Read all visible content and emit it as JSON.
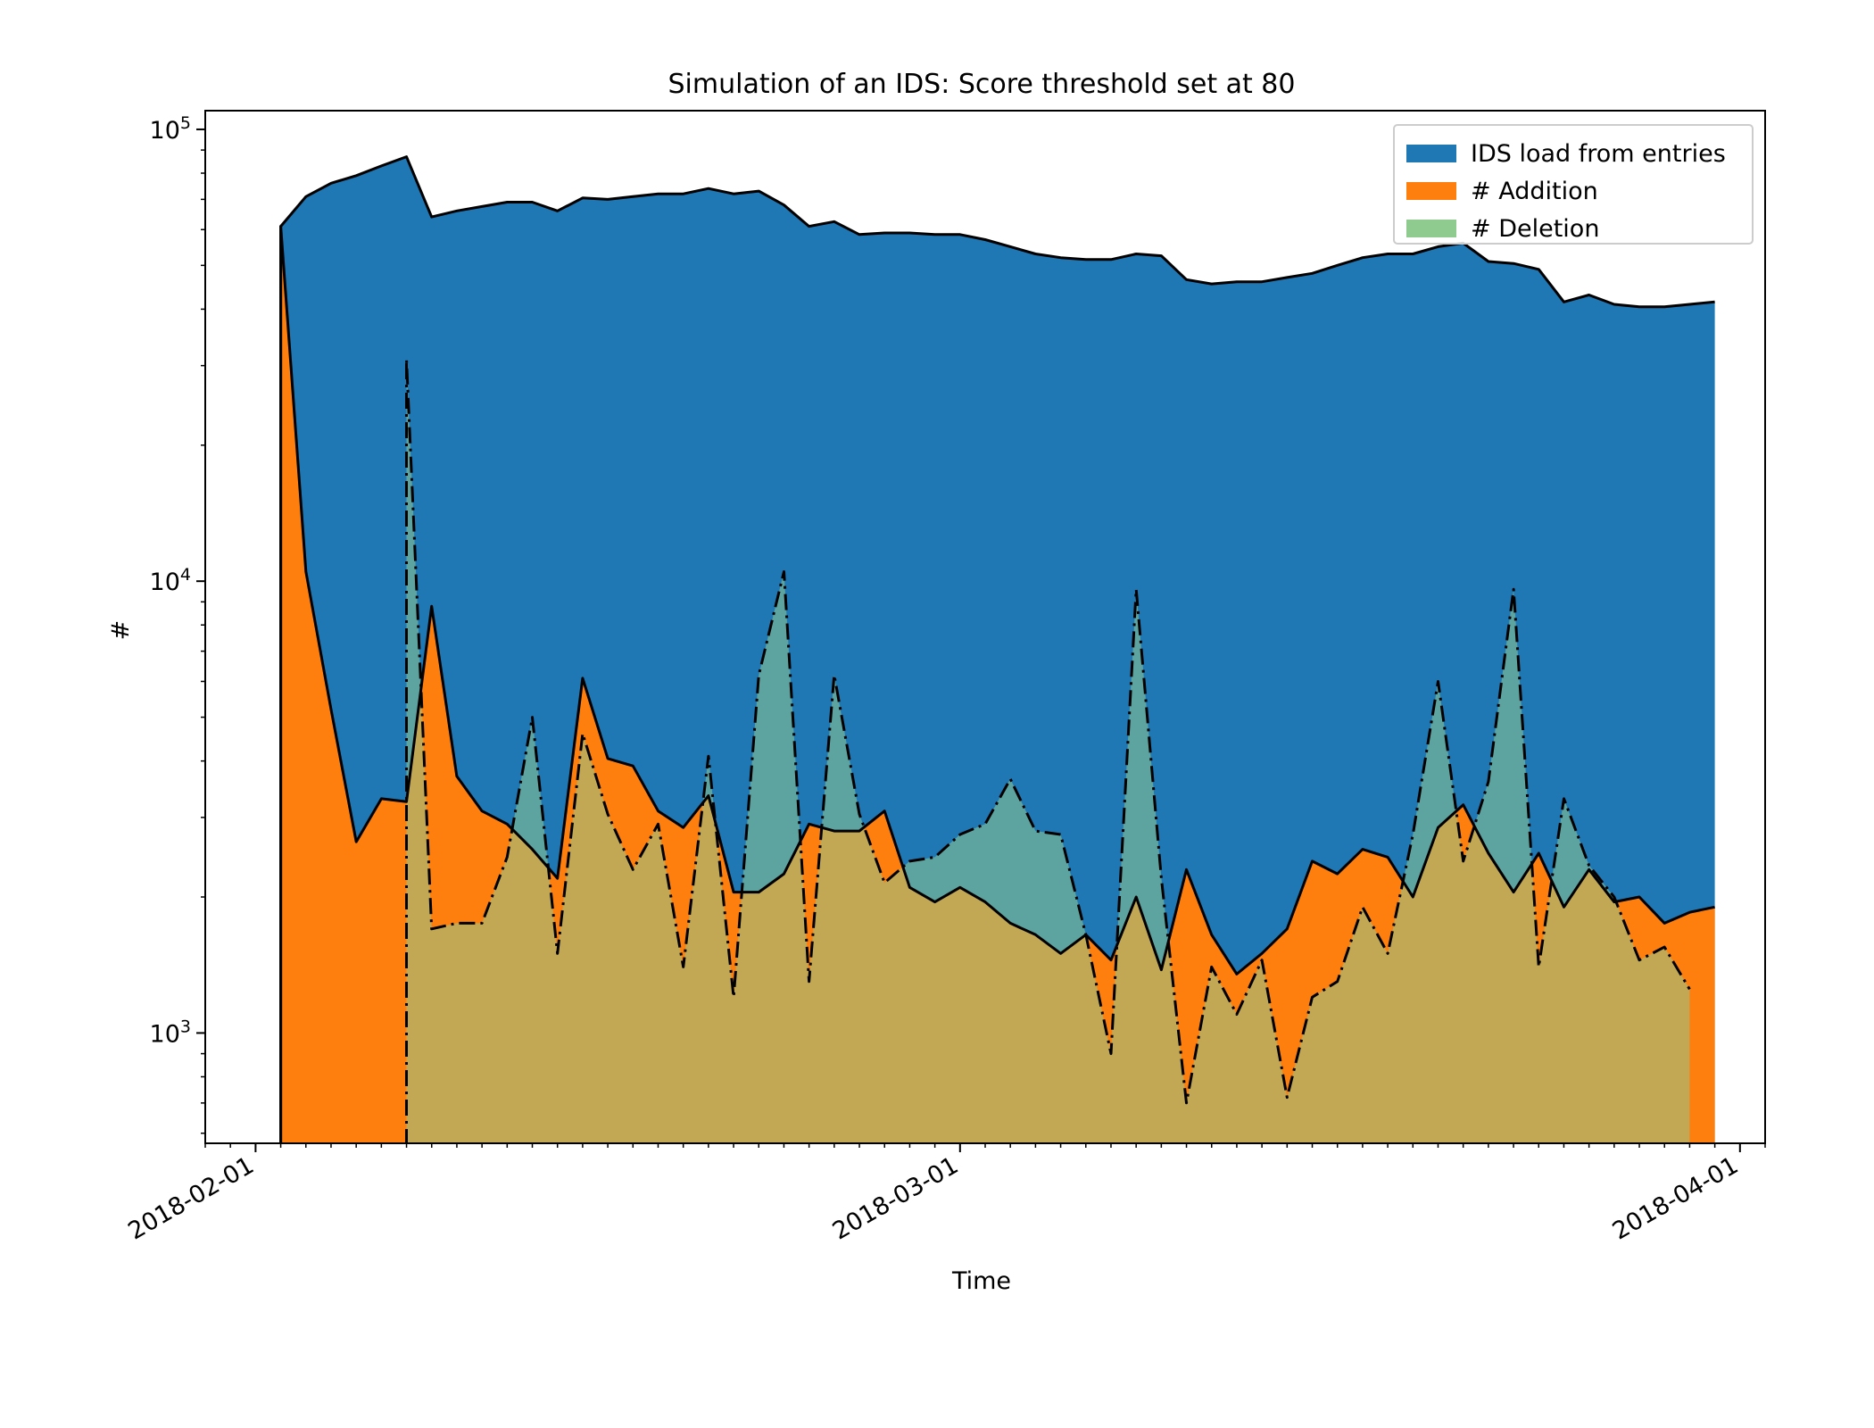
{
  "chart_data": {
    "type": "area",
    "title": "Simulation of an IDS: Score threshold set at 80",
    "xlabel": "Time",
    "ylabel": "#",
    "yscale": "log",
    "ylim": [
      570,
      110000
    ],
    "xlim_day": [
      -2,
      60
    ],
    "start_date": "2018-02-01",
    "x_ticks": [
      {
        "day": 0,
        "label": "2018-02-01"
      },
      {
        "day": 28,
        "label": "2018-03-01"
      },
      {
        "day": 59,
        "label": "2018-04-01"
      }
    ],
    "y_ticks": [
      {
        "value": 1000,
        "base": "10",
        "exp": "3"
      },
      {
        "value": 10000,
        "base": "10",
        "exp": "4"
      },
      {
        "value": 100000,
        "base": "10",
        "exp": "5"
      }
    ],
    "legend": [
      "IDS load from entries",
      "# Addition",
      "# Deletion"
    ],
    "legend_position": "top-right",
    "days": [
      1,
      2,
      3,
      4,
      5,
      6,
      7,
      8,
      9,
      10,
      11,
      12,
      13,
      14,
      15,
      16,
      17,
      18,
      19,
      20,
      21,
      22,
      23,
      24,
      25,
      26,
      27,
      28,
      29,
      30,
      31,
      32,
      33,
      34,
      35,
      36,
      37,
      38,
      39,
      40,
      41,
      42,
      43,
      44,
      45,
      46,
      47,
      48,
      49,
      50,
      51,
      52,
      53,
      54,
      55,
      56,
      57,
      58
    ],
    "series": [
      {
        "name": "IDS load from entries",
        "color": "#1f77b4",
        "line_style": "solid",
        "values": [
          61000,
          71000,
          76000,
          79000,
          83000,
          87000,
          64000,
          66000,
          67500,
          69000,
          69000,
          66000,
          70500,
          70000,
          71000,
          72000,
          72000,
          74000,
          72000,
          73000,
          68000,
          61000,
          62500,
          58500,
          59000,
          59000,
          58500,
          58500,
          57000,
          55000,
          53000,
          52000,
          51500,
          51500,
          53000,
          52500,
          46500,
          45500,
          46000,
          46000,
          47000,
          48000,
          50000,
          52000,
          53000,
          53000,
          55000,
          56000,
          51000,
          50500,
          49000,
          41500,
          43000,
          41000,
          40500,
          40500,
          41000,
          41500
        ]
      },
      {
        "name": "# Addition",
        "color": "#ff7f0e",
        "line_style": "solid",
        "values": [
          61000,
          10500,
          5200,
          2650,
          3300,
          3250,
          8800,
          3700,
          3100,
          2900,
          2550,
          2200,
          6100,
          4050,
          3900,
          3100,
          2850,
          3350,
          2050,
          2050,
          2250,
          2900,
          2800,
          2800,
          3100,
          2100,
          1950,
          2100,
          1950,
          1750,
          1650,
          1500,
          1650,
          1450,
          2000,
          1380,
          2300,
          1650,
          1350,
          1500,
          1700,
          2400,
          2250,
          2550,
          2450,
          2000,
          2850,
          3200,
          2500,
          2050,
          2500,
          1900,
          2300,
          1950,
          2000,
          1750,
          1850,
          1900
        ]
      },
      {
        "name": "# Deletion",
        "color": "#8fca8f",
        "line_style": "dashdot",
        "start_day": 6,
        "values": [
          null,
          null,
          null,
          null,
          null,
          31000,
          1700,
          1750,
          1750,
          2450,
          5000,
          1500,
          4600,
          3050,
          2300,
          2900,
          1400,
          4100,
          1200,
          6200,
          10500,
          1300,
          6200,
          3050,
          2150,
          2400,
          2450,
          2750,
          2900,
          3650,
          2800,
          2750,
          1650,
          900,
          9600,
          2200,
          700,
          1400,
          1100,
          1450,
          720,
          1200,
          1300,
          1900,
          1500,
          2750,
          6000,
          2400,
          3600,
          9600,
          1400,
          3300,
          2350,
          2000,
          1450,
          1550,
          1250,
          null
        ]
      }
    ]
  }
}
